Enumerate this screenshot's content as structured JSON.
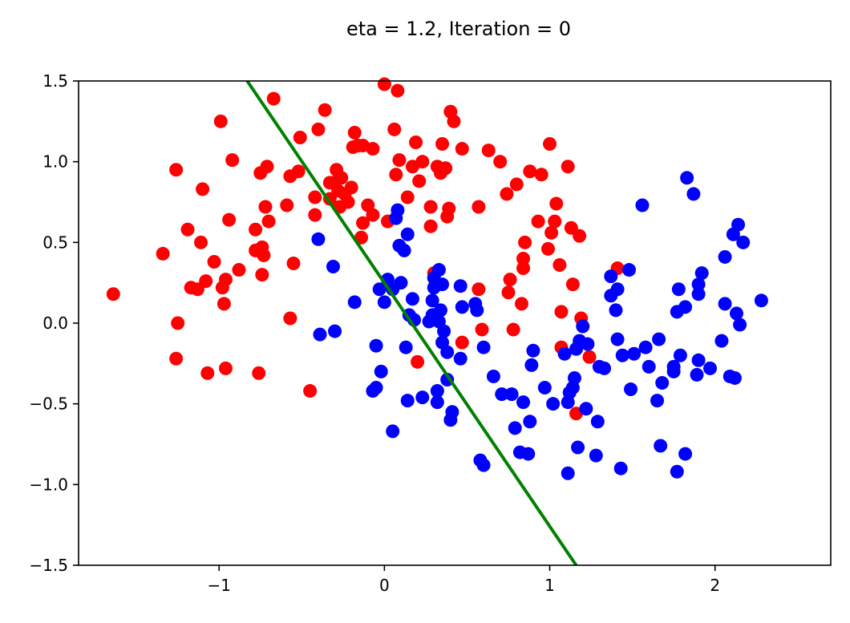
{
  "chart_data": {
    "type": "scatter",
    "title": "eta = 1.2, Iteration = 0",
    "xlabel": "",
    "ylabel": "",
    "xlim": [
      -1.85,
      2.7
    ],
    "ylim": [
      -1.5,
      1.5
    ],
    "xticks": [
      {
        "value": -1,
        "label": "−1"
      },
      {
        "value": 0,
        "label": "0"
      },
      {
        "value": 1,
        "label": "1"
      },
      {
        "value": 2,
        "label": "2"
      }
    ],
    "yticks": [
      {
        "value": -1.5,
        "label": "−1.5"
      },
      {
        "value": -1.0,
        "label": "−1.0"
      },
      {
        "value": -0.5,
        "label": "−0.5"
      },
      {
        "value": 0.0,
        "label": "0.0"
      },
      {
        "value": 0.5,
        "label": "0.5"
      },
      {
        "value": 1.0,
        "label": "1.0"
      },
      {
        "value": 1.5,
        "label": "1.5"
      }
    ],
    "grid": false,
    "legend": "none",
    "series": [
      {
        "color": "#ff0000",
        "points": [
          [
            -1.64,
            0.18
          ],
          [
            -1.34,
            0.43
          ],
          [
            -1.26,
            0.95
          ],
          [
            -1.25,
            0.0
          ],
          [
            -1.26,
            -0.22
          ],
          [
            -1.19,
            0.58
          ],
          [
            -1.17,
            0.22
          ],
          [
            -1.13,
            0.21
          ],
          [
            -1.11,
            0.5
          ],
          [
            -1.1,
            0.83
          ],
          [
            -1.08,
            0.26
          ],
          [
            -1.07,
            -0.31
          ],
          [
            -1.03,
            0.38
          ],
          [
            -0.99,
            1.25
          ],
          [
            -0.98,
            0.22
          ],
          [
            -0.97,
            0.12
          ],
          [
            -0.96,
            0.27
          ],
          [
            -0.96,
            -0.28
          ],
          [
            -0.94,
            0.64
          ],
          [
            -0.92,
            1.01
          ],
          [
            -0.88,
            0.33
          ],
          [
            -0.78,
            0.58
          ],
          [
            -0.78,
            0.45
          ],
          [
            -0.76,
            -0.31
          ],
          [
            -0.75,
            0.93
          ],
          [
            -0.74,
            0.47
          ],
          [
            -0.74,
            0.3
          ],
          [
            -0.73,
            0.42
          ],
          [
            -0.72,
            0.72
          ],
          [
            -0.71,
            0.97
          ],
          [
            -0.7,
            0.63
          ],
          [
            -0.67,
            1.39
          ],
          [
            -0.59,
            0.73
          ],
          [
            -0.57,
            0.91
          ],
          [
            -0.57,
            0.03
          ],
          [
            -0.55,
            0.37
          ],
          [
            -0.52,
            0.94
          ],
          [
            -0.51,
            1.15
          ],
          [
            -0.45,
            -0.42
          ],
          [
            -0.42,
            0.78
          ],
          [
            -0.42,
            0.67
          ],
          [
            -0.4,
            1.2
          ],
          [
            -0.36,
            1.32
          ],
          [
            -0.33,
            0.87
          ],
          [
            -0.33,
            0.77
          ],
          [
            -0.31,
            0.87
          ],
          [
            -0.29,
            0.95
          ],
          [
            -0.28,
            0.82
          ],
          [
            -0.27,
            0.72
          ],
          [
            -0.26,
            0.9
          ],
          [
            -0.24,
            0.8
          ],
          [
            -0.22,
            0.75
          ],
          [
            -0.2,
            0.84
          ],
          [
            -0.19,
            1.09
          ],
          [
            -0.18,
            1.18
          ],
          [
            -0.16,
            1.1
          ],
          [
            -0.14,
            0.53
          ],
          [
            -0.13,
            1.1
          ],
          [
            -0.13,
            0.62
          ],
          [
            -0.1,
            0.73
          ],
          [
            -0.07,
            0.67
          ],
          [
            -0.07,
            1.08
          ],
          [
            0.0,
            1.48
          ],
          [
            0.02,
            0.63
          ],
          [
            0.06,
            1.2
          ],
          [
            0.07,
            0.92
          ],
          [
            0.08,
            1.44
          ],
          [
            0.09,
            1.01
          ],
          [
            0.14,
            0.78
          ],
          [
            0.17,
            0.97
          ],
          [
            0.19,
            1.12
          ],
          [
            0.2,
            -0.24
          ],
          [
            0.21,
            0.88
          ],
          [
            0.23,
            1.0
          ],
          [
            0.28,
            0.6
          ],
          [
            0.28,
            0.72
          ],
          [
            0.3,
            0.31
          ],
          [
            0.32,
            0.97
          ],
          [
            0.34,
            0.93
          ],
          [
            0.35,
            1.11
          ],
          [
            0.37,
            0.96
          ],
          [
            0.38,
            0.66
          ],
          [
            0.39,
            0.71
          ],
          [
            0.4,
            1.31
          ],
          [
            0.42,
            1.25
          ],
          [
            0.47,
            1.08
          ],
          [
            0.47,
            -0.12
          ],
          [
            0.57,
            0.21
          ],
          [
            0.57,
            0.72
          ],
          [
            0.59,
            -0.04
          ],
          [
            0.63,
            1.07
          ],
          [
            0.7,
            1.0
          ],
          [
            0.74,
            0.8
          ],
          [
            0.75,
            0.19
          ],
          [
            0.76,
            0.27
          ],
          [
            0.78,
            -0.04
          ],
          [
            0.8,
            0.86
          ],
          [
            0.83,
            0.12
          ],
          [
            0.84,
            0.34
          ],
          [
            0.84,
            0.4
          ],
          [
            0.85,
            0.5
          ],
          [
            0.88,
            0.94
          ],
          [
            0.93,
            0.63
          ],
          [
            0.95,
            0.92
          ],
          [
            0.99,
            0.46
          ],
          [
            1.0,
            1.11
          ],
          [
            1.01,
            0.56
          ],
          [
            1.03,
            0.63
          ],
          [
            1.04,
            0.74
          ],
          [
            1.06,
            0.36
          ],
          [
            1.07,
            0.07
          ],
          [
            1.07,
            -0.15
          ],
          [
            1.11,
            0.97
          ],
          [
            1.13,
            0.59
          ],
          [
            1.14,
            0.24
          ],
          [
            1.16,
            -0.56
          ],
          [
            1.18,
            0.54
          ],
          [
            1.19,
            0.03
          ],
          [
            1.24,
            -0.21
          ],
          [
            1.41,
            0.34
          ]
        ]
      },
      {
        "color": "#0000ff",
        "points": [
          [
            -0.4,
            0.52
          ],
          [
            -0.39,
            -0.07
          ],
          [
            -0.31,
            0.35
          ],
          [
            -0.3,
            -0.05
          ],
          [
            -0.18,
            0.13
          ],
          [
            -0.07,
            -0.42
          ],
          [
            -0.05,
            -0.4
          ],
          [
            -0.05,
            -0.14
          ],
          [
            -0.03,
            0.21
          ],
          [
            -0.02,
            -0.3
          ],
          [
            0.0,
            0.13
          ],
          [
            0.02,
            0.27
          ],
          [
            0.05,
            0.21
          ],
          [
            0.05,
            -0.67
          ],
          [
            0.07,
            0.65
          ],
          [
            0.08,
            0.7
          ],
          [
            0.09,
            0.48
          ],
          [
            0.1,
            0.25
          ],
          [
            0.12,
            0.45
          ],
          [
            0.13,
            -0.15
          ],
          [
            0.14,
            -0.48
          ],
          [
            0.14,
            0.55
          ],
          [
            0.15,
            0.05
          ],
          [
            0.17,
            0.15
          ],
          [
            0.18,
            0.02
          ],
          [
            0.23,
            -0.46
          ],
          [
            0.27,
            0.01
          ],
          [
            0.29,
            0.05
          ],
          [
            0.29,
            0.14
          ],
          [
            0.3,
            0.22
          ],
          [
            0.3,
            0.28
          ],
          [
            0.32,
            -0.42
          ],
          [
            0.32,
            -0.49
          ],
          [
            0.33,
            0.33
          ],
          [
            0.33,
            0.01
          ],
          [
            0.34,
            0.08
          ],
          [
            0.35,
            -0.12
          ],
          [
            0.35,
            0.24
          ],
          [
            0.36,
            -0.05
          ],
          [
            0.38,
            -0.18
          ],
          [
            0.38,
            -0.35
          ],
          [
            0.4,
            -0.6
          ],
          [
            0.41,
            -0.55
          ],
          [
            0.46,
            0.23
          ],
          [
            0.46,
            -0.22
          ],
          [
            0.47,
            0.1
          ],
          [
            0.55,
            0.12
          ],
          [
            0.56,
            0.08
          ],
          [
            0.58,
            -0.85
          ],
          [
            0.6,
            -0.88
          ],
          [
            0.6,
            -0.15
          ],
          [
            0.66,
            -0.33
          ],
          [
            0.71,
            -0.44
          ],
          [
            0.77,
            -0.44
          ],
          [
            0.79,
            -0.65
          ],
          [
            0.82,
            -0.8
          ],
          [
            0.84,
            -0.49
          ],
          [
            0.87,
            -0.81
          ],
          [
            0.88,
            -0.61
          ],
          [
            0.89,
            -0.26
          ],
          [
            0.9,
            -0.17
          ],
          [
            0.97,
            -0.4
          ],
          [
            1.02,
            -0.5
          ],
          [
            1.09,
            -0.19
          ],
          [
            1.11,
            -0.93
          ],
          [
            1.11,
            -0.49
          ],
          [
            1.12,
            -0.43
          ],
          [
            1.14,
            -0.4
          ],
          [
            1.15,
            -0.34
          ],
          [
            1.16,
            -0.16
          ],
          [
            1.17,
            -0.77
          ],
          [
            1.18,
            -0.11
          ],
          [
            1.2,
            -0.02
          ],
          [
            1.22,
            -0.53
          ],
          [
            1.23,
            -0.13
          ],
          [
            1.28,
            -0.82
          ],
          [
            1.29,
            -0.61
          ],
          [
            1.3,
            -0.27
          ],
          [
            1.33,
            -0.28
          ],
          [
            1.37,
            0.17
          ],
          [
            1.37,
            0.29
          ],
          [
            1.4,
            0.08
          ],
          [
            1.41,
            0.21
          ],
          [
            1.41,
            -0.1
          ],
          [
            1.43,
            -0.9
          ],
          [
            1.44,
            -0.2
          ],
          [
            1.48,
            0.33
          ],
          [
            1.49,
            -0.41
          ],
          [
            1.51,
            -0.19
          ],
          [
            1.56,
            0.73
          ],
          [
            1.58,
            -0.15
          ],
          [
            1.6,
            -0.27
          ],
          [
            1.65,
            -0.48
          ],
          [
            1.66,
            -0.1
          ],
          [
            1.67,
            -0.76
          ],
          [
            1.68,
            -0.37
          ],
          [
            1.75,
            -0.3
          ],
          [
            1.75,
            -0.27
          ],
          [
            1.77,
            -0.92
          ],
          [
            1.77,
            0.07
          ],
          [
            1.78,
            0.21
          ],
          [
            1.79,
            -0.2
          ],
          [
            1.82,
            0.1
          ],
          [
            1.82,
            -0.81
          ],
          [
            1.83,
            0.9
          ],
          [
            1.87,
            0.8
          ],
          [
            1.89,
            -0.32
          ],
          [
            1.9,
            0.24
          ],
          [
            1.9,
            -0.23
          ],
          [
            1.9,
            0.18
          ],
          [
            1.92,
            0.31
          ],
          [
            1.97,
            -0.28
          ],
          [
            2.04,
            -0.11
          ],
          [
            2.06,
            0.41
          ],
          [
            2.06,
            0.12
          ],
          [
            2.09,
            -0.33
          ],
          [
            2.11,
            0.55
          ],
          [
            2.12,
            -0.34
          ],
          [
            2.13,
            0.06
          ],
          [
            2.14,
            0.61
          ],
          [
            2.15,
            -0.01
          ],
          [
            2.17,
            0.5
          ],
          [
            2.28,
            0.14
          ]
        ]
      }
    ],
    "boundary_line": {
      "color": "#008000",
      "points": [
        [
          -0.83,
          1.5
        ],
        [
          1.16,
          -1.5
        ]
      ]
    }
  }
}
